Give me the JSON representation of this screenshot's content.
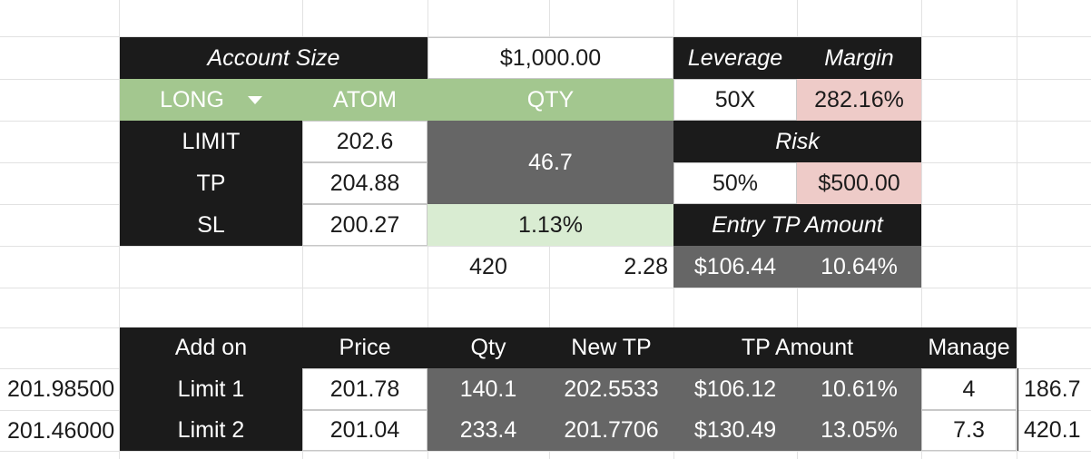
{
  "top_table": {
    "account_size_label": "Account Size",
    "account_size_value": "$1,000.00",
    "leverage_label": "Leverage",
    "margin_label": "Margin",
    "direction": "LONG",
    "symbol": "ATOM",
    "qty_label": "QTY",
    "leverage_value": "50X",
    "margin_value": "282.16%",
    "limit_label": "LIMIT",
    "limit_value": "202.6",
    "qty_value": "46.7",
    "risk_label": "Risk",
    "tp_label": "TP",
    "tp_value": "204.88",
    "risk_percent": "50%",
    "risk_amount": "$500.00",
    "sl_label": "SL",
    "sl_value": "200.27",
    "qty_percent": "1.13%",
    "entry_tp_amount_label": "Entry TP Amount",
    "under_qty_value": "420",
    "under_pct_value": "2.28",
    "entry_tp_amount_value": "$106.44",
    "entry_tp_amount_percent": "10.64%"
  },
  "addon_table": {
    "headers": {
      "add_on": "Add on",
      "price": "Price",
      "qty": "Qty",
      "new_tp": "New TP",
      "tp_amount": "TP Amount",
      "manage": "Manage"
    },
    "rows": [
      {
        "side_value": "201.98500",
        "name": "Limit 1",
        "price": "201.78",
        "qty": "140.1",
        "new_tp": "202.5533",
        "tp_amount": "$106.12",
        "tp_percent": "10.61%",
        "manage": "4",
        "extra": "186.7"
      },
      {
        "side_value": "201.46000",
        "name": "Limit 2",
        "price": "201.04",
        "qty": "233.4",
        "new_tp": "201.7706",
        "tp_amount": "$130.49",
        "tp_percent": "13.05%",
        "manage": "7.3",
        "extra": "420.1"
      }
    ]
  },
  "colors": {
    "black_cell": "#1b1b1b",
    "green_header": "#a3c78f",
    "light_green": "#d9ecd2",
    "dark_gray": "#666666",
    "pink": "#eecbc8"
  }
}
